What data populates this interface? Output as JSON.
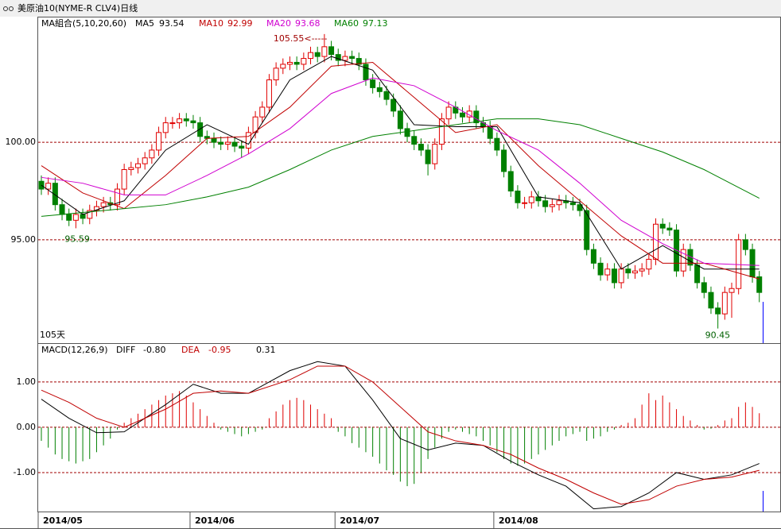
{
  "title": "美原油10(NYME-R CLV4)日线",
  "chart_data": [
    {
      "type": "candlestick",
      "subtitle": "MA組合(5,10,20,60)",
      "ylim": [
        89.7,
        106.4
      ],
      "xlim": [
        0,
        104
      ],
      "yticks": [
        {
          "value": 100,
          "label": "100.00"
        },
        {
          "value": 95,
          "label": "95.00"
        }
      ],
      "xticks": [
        {
          "value": 0,
          "label": "2014/05"
        },
        {
          "value": 22,
          "label": "2014/06"
        },
        {
          "value": 43,
          "label": "2014/07"
        },
        {
          "value": 66,
          "label": "2014/08"
        }
      ],
      "grid": true,
      "up_color": "#e00000",
      "down_color": "#008000",
      "open": [
        98.0,
        97.6,
        97.9,
        96.8,
        96.3,
        96.0,
        96.3,
        96.1,
        96.5,
        96.7,
        96.9,
        96.8,
        97.6,
        98.6,
        98.7,
        98.9,
        99.2,
        99.6,
        100.5,
        101.0,
        101.0,
        101.2,
        101.1,
        101.0,
        100.3,
        100.2,
        100.0,
        99.9,
        100.0,
        99.8,
        99.7,
        100.5,
        101.3,
        101.8,
        103.2,
        103.8,
        104.0,
        104.1,
        104.0,
        104.3,
        104.6,
        104.4,
        104.9,
        104.5,
        104.2,
        104.4,
        104.3,
        104.0,
        103.2,
        102.8,
        102.6,
        102.2,
        101.6,
        100.7,
        100.3,
        99.9,
        99.6,
        98.9,
        99.9,
        101.2,
        101.8,
        101.5,
        101.3,
        101.6,
        101.0,
        100.8,
        100.2,
        99.6,
        98.5,
        97.5,
        96.9,
        96.9,
        97.2,
        97.0,
        96.7,
        96.8,
        97.0,
        96.9,
        96.8,
        96.5,
        94.5,
        93.8,
        93.2,
        93.5,
        92.8,
        93.5,
        93.3,
        93.4,
        93.5,
        94.0,
        95.8,
        95.6,
        95.5,
        93.4,
        94.5,
        93.7,
        92.8,
        92.3,
        91.5,
        91.2,
        92.3,
        92.5,
        95.0,
        94.5,
        93.1
      ],
      "high": [
        98.3,
        98.2,
        98.2,
        97.1,
        96.6,
        96.6,
        96.6,
        96.8,
        97.0,
        97.2,
        97.2,
        97.9,
        98.9,
        99.0,
        99.2,
        99.5,
        99.9,
        100.8,
        101.3,
        101.3,
        101.5,
        101.5,
        101.4,
        101.3,
        100.6,
        100.5,
        100.3,
        100.3,
        100.3,
        100.1,
        100.8,
        101.6,
        102.1,
        103.5,
        104.1,
        104.3,
        104.4,
        104.4,
        104.6,
        104.9,
        104.9,
        105.55,
        105.2,
        104.8,
        104.7,
        104.7,
        104.6,
        104.3,
        103.5,
        103.1,
        102.9,
        102.5,
        101.9,
        101.0,
        100.6,
        100.2,
        99.9,
        100.2,
        101.5,
        102.1,
        102.1,
        101.8,
        101.9,
        101.9,
        101.3,
        101.1,
        100.5,
        99.9,
        98.8,
        97.8,
        97.2,
        97.5,
        97.5,
        97.3,
        97.1,
        97.3,
        97.3,
        97.2,
        97.1,
        96.8,
        94.8,
        94.1,
        93.8,
        93.8,
        93.8,
        93.8,
        93.7,
        93.8,
        94.3,
        96.1,
        96.1,
        95.9,
        95.8,
        94.8,
        94.8,
        94.0,
        93.1,
        92.6,
        91.8,
        92.6,
        92.8,
        95.3,
        95.3,
        94.8,
        93.4
      ],
      "low": [
        97.3,
        97.3,
        96.5,
        96.0,
        95.7,
        95.59,
        95.8,
        95.8,
        96.2,
        96.4,
        96.5,
        96.5,
        97.3,
        98.3,
        98.4,
        98.6,
        98.9,
        99.3,
        100.2,
        100.7,
        100.7,
        100.8,
        100.7,
        100.0,
        99.9,
        99.7,
        99.6,
        99.6,
        99.5,
        99.2,
        99.4,
        100.2,
        101.0,
        101.5,
        102.9,
        103.5,
        103.7,
        103.7,
        103.7,
        104.0,
        104.1,
        104.1,
        104.2,
        103.9,
        103.9,
        104.0,
        103.7,
        102.9,
        102.5,
        102.3,
        101.9,
        101.3,
        100.4,
        100.0,
        99.6,
        99.3,
        98.3,
        98.6,
        99.6,
        100.9,
        101.2,
        101.0,
        101.0,
        100.7,
        100.5,
        99.9,
        99.3,
        98.2,
        97.2,
        96.6,
        96.6,
        96.6,
        96.7,
        96.4,
        96.4,
        96.5,
        96.6,
        96.5,
        96.2,
        94.2,
        93.5,
        92.9,
        92.9,
        92.5,
        92.5,
        93.0,
        93.0,
        93.1,
        93.2,
        93.7,
        95.3,
        95.2,
        93.1,
        93.1,
        93.4,
        92.5,
        92.0,
        91.2,
        90.45,
        90.9,
        91.0,
        92.2,
        94.2,
        92.8,
        91.8
      ],
      "close": [
        97.6,
        97.9,
        96.8,
        96.3,
        96.0,
        96.3,
        96.1,
        96.5,
        96.7,
        96.9,
        96.8,
        97.6,
        98.6,
        98.7,
        98.9,
        99.2,
        99.6,
        100.5,
        101.0,
        101.0,
        101.2,
        101.1,
        101.0,
        100.3,
        100.2,
        100.0,
        99.9,
        100.0,
        99.8,
        99.7,
        100.5,
        101.3,
        101.8,
        103.2,
        103.8,
        104.0,
        104.1,
        104.0,
        104.3,
        104.6,
        104.4,
        104.9,
        104.5,
        104.2,
        104.4,
        104.3,
        104.0,
        103.2,
        102.8,
        102.6,
        102.2,
        101.6,
        100.7,
        100.3,
        99.9,
        99.6,
        98.9,
        99.9,
        101.2,
        101.8,
        101.5,
        101.3,
        101.6,
        101.0,
        100.8,
        100.2,
        99.6,
        98.5,
        97.5,
        96.9,
        96.9,
        97.2,
        97.0,
        96.7,
        96.8,
        97.0,
        96.9,
        96.8,
        96.5,
        94.5,
        93.8,
        93.2,
        93.5,
        92.8,
        93.5,
        93.3,
        93.4,
        93.5,
        94.0,
        95.8,
        95.6,
        95.5,
        93.4,
        94.5,
        93.7,
        92.8,
        92.3,
        91.5,
        91.2,
        92.3,
        92.5,
        95.0,
        94.5,
        93.1,
        92.3
      ],
      "series": [
        {
          "name": "MA5",
          "readout": "93.54",
          "color": "#000000",
          "x": [
            0,
            6,
            12,
            18,
            24,
            30,
            36,
            42,
            48,
            54,
            60,
            66,
            72,
            78,
            84,
            90,
            96,
            104
          ],
          "values": [
            97.8,
            96.3,
            97.0,
            99.6,
            100.9,
            99.9,
            103.2,
            104.4,
            103.7,
            100.9,
            100.8,
            100.8,
            97.2,
            96.9,
            93.5,
            94.7,
            93.5,
            93.5
          ]
        },
        {
          "name": "MA10",
          "readout": "92.99",
          "color": "#c00000",
          "x": [
            0,
            6,
            12,
            18,
            24,
            30,
            36,
            42,
            48,
            54,
            60,
            66,
            72,
            78,
            84,
            90,
            96,
            104
          ],
          "values": [
            98.8,
            97.4,
            96.6,
            98.3,
            100.2,
            100.3,
            101.8,
            103.9,
            104.1,
            102.3,
            100.5,
            100.9,
            98.8,
            97.0,
            95.2,
            93.8,
            93.8,
            92.99
          ]
        },
        {
          "name": "MA20",
          "readout": "93.68",
          "color": "#d000d0",
          "x": [
            0,
            6,
            12,
            18,
            24,
            30,
            36,
            42,
            48,
            54,
            60,
            66,
            72,
            78,
            84,
            90,
            96,
            104
          ],
          "values": [
            98.2,
            97.9,
            97.3,
            97.3,
            98.3,
            99.4,
            100.7,
            102.5,
            103.3,
            102.9,
            101.8,
            100.6,
            99.6,
            97.9,
            96.0,
            94.8,
            93.8,
            93.68
          ]
        },
        {
          "name": "MA60",
          "readout": "97.13",
          "color": "#008000",
          "x": [
            0,
            6,
            12,
            18,
            24,
            30,
            36,
            42,
            48,
            54,
            60,
            66,
            72,
            78,
            84,
            90,
            96,
            104
          ],
          "values": [
            96.2,
            96.4,
            96.6,
            96.8,
            97.2,
            97.7,
            98.6,
            99.6,
            100.3,
            100.6,
            100.9,
            101.2,
            101.2,
            100.9,
            100.2,
            99.5,
            98.6,
            97.13
          ]
        }
      ],
      "annotations": [
        {
          "text": "105.55<-----",
          "x": 41,
          "y": 105.55
        },
        {
          "text": "95.59",
          "x": 5,
          "y": 95.59
        },
        {
          "text": "90.45",
          "x": 98,
          "y": 90.45
        },
        {
          "text": "105天"
        }
      ]
    },
    {
      "type": "macd",
      "subtitle": "MACD(12,26,9)",
      "ylim": [
        -1.86,
        1.84
      ],
      "xlim": [
        0,
        104
      ],
      "yticks": [
        {
          "value": 1,
          "label": "1.00"
        },
        {
          "value": 0,
          "label": "0.00"
        },
        {
          "value": -1,
          "label": "-1.00"
        }
      ],
      "grid": true,
      "histogram": {
        "readout": "0.31",
        "values": [
          -0.3,
          -0.45,
          -0.6,
          -0.7,
          -0.75,
          -0.8,
          -0.75,
          -0.7,
          -0.55,
          -0.4,
          -0.25,
          -0.05,
          0.1,
          0.2,
          0.3,
          0.4,
          0.5,
          0.6,
          0.7,
          0.75,
          0.8,
          0.7,
          0.55,
          0.4,
          0.25,
          0.1,
          -0.05,
          -0.1,
          -0.15,
          -0.2,
          -0.15,
          -0.1,
          -0.05,
          0.2,
          0.35,
          0.5,
          0.6,
          0.65,
          0.6,
          0.5,
          0.4,
          0.3,
          0.2,
          -0.1,
          -0.2,
          -0.35,
          -0.45,
          -0.55,
          -0.65,
          -0.8,
          -0.95,
          -1.05,
          -1.2,
          -1.3,
          -1.25,
          -1.0,
          -0.7,
          -0.45,
          -0.25,
          -0.1,
          -0.05,
          -0.1,
          -0.15,
          -0.2,
          -0.3,
          -0.4,
          -0.55,
          -0.7,
          -0.8,
          -0.85,
          -0.8,
          -0.7,
          -0.6,
          -0.5,
          -0.4,
          -0.3,
          -0.2,
          -0.15,
          -0.1,
          -0.3,
          -0.25,
          -0.2,
          -0.1,
          -0.05,
          0.05,
          0.1,
          0.2,
          0.5,
          0.75,
          0.6,
          0.7,
          0.55,
          0.4,
          0.25,
          0.15,
          0.05,
          -0.05,
          -0.03,
          0.05,
          0.15,
          0.2,
          0.45,
          0.55,
          0.45,
          0.31
        ],
        "up_color": "#e00000",
        "down_color": "#008000"
      },
      "series": [
        {
          "name": "DIFF",
          "readout": "-0.80",
          "color": "#000000",
          "x": [
            0,
            4,
            8,
            12,
            18,
            22,
            26,
            30,
            36,
            40,
            44,
            48,
            52,
            56,
            60,
            64,
            68,
            72,
            76,
            80,
            84,
            88,
            92,
            96,
            100,
            104
          ],
          "values": [
            0.62,
            0.2,
            -0.12,
            -0.1,
            0.5,
            0.95,
            0.75,
            0.75,
            1.25,
            1.45,
            1.35,
            0.6,
            -0.25,
            -0.5,
            -0.35,
            -0.4,
            -0.75,
            -1.05,
            -1.3,
            -1.8,
            -1.75,
            -1.45,
            -1.0,
            -1.15,
            -1.05,
            -0.8
          ]
        },
        {
          "name": "DEA",
          "readout": "-0.95",
          "color": "#c00000",
          "x": [
            0,
            4,
            8,
            12,
            18,
            22,
            26,
            30,
            36,
            40,
            44,
            48,
            52,
            56,
            60,
            64,
            68,
            72,
            76,
            80,
            84,
            88,
            92,
            96,
            100,
            104
          ],
          "values": [
            0.82,
            0.55,
            0.2,
            0.0,
            0.4,
            0.75,
            0.8,
            0.75,
            1.05,
            1.35,
            1.35,
            1.0,
            0.45,
            -0.1,
            -0.3,
            -0.4,
            -0.6,
            -0.9,
            -1.15,
            -1.45,
            -1.7,
            -1.6,
            -1.3,
            -1.15,
            -1.1,
            -0.95
          ]
        }
      ]
    }
  ]
}
